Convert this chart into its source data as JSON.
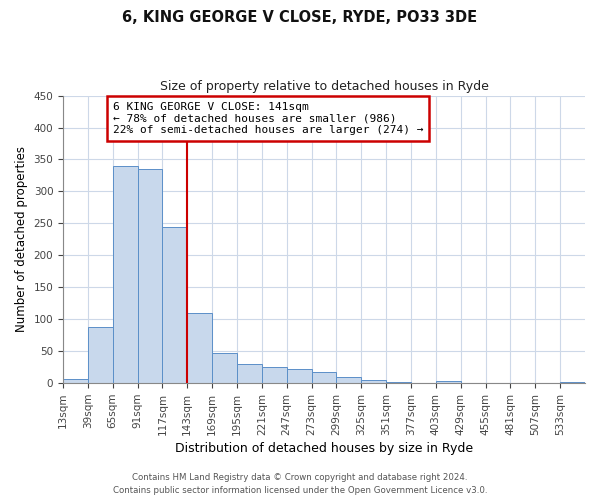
{
  "title": "6, KING GEORGE V CLOSE, RYDE, PO33 3DE",
  "subtitle": "Size of property relative to detached houses in Ryde",
  "xlabel": "Distribution of detached houses by size in Ryde",
  "ylabel": "Number of detached properties",
  "bar_values": [
    7,
    88,
    340,
    335,
    245,
    110,
    48,
    30,
    25,
    22,
    17,
    9,
    5,
    2,
    1,
    3,
    0,
    1,
    0,
    0,
    2
  ],
  "bin_labels": [
    "13sqm",
    "39sqm",
    "65sqm",
    "91sqm",
    "117sqm",
    "143sqm",
    "169sqm",
    "195sqm",
    "221sqm",
    "247sqm",
    "273sqm",
    "299sqm",
    "325sqm",
    "351sqm",
    "377sqm",
    "403sqm",
    "429sqm",
    "455sqm",
    "481sqm",
    "507sqm",
    "533sqm"
  ],
  "bar_color": "#c8d8ec",
  "bar_edge_color": "#5b8fc8",
  "marker_label": "6 KING GEORGE V CLOSE: 141sqm",
  "annotation_line1": "← 78% of detached houses are smaller (986)",
  "annotation_line2": "22% of semi-detached houses are larger (274) →",
  "vline_color": "#cc0000",
  "annotation_box_edge": "#cc0000",
  "ylim": [
    0,
    450
  ],
  "yticks": [
    0,
    50,
    100,
    150,
    200,
    250,
    300,
    350,
    400,
    450
  ],
  "footer_line1": "Contains HM Land Registry data © Crown copyright and database right 2024.",
  "footer_line2": "Contains public sector information licensed under the Open Government Licence v3.0.",
  "background_color": "#ffffff",
  "grid_color": "#cdd8e8"
}
